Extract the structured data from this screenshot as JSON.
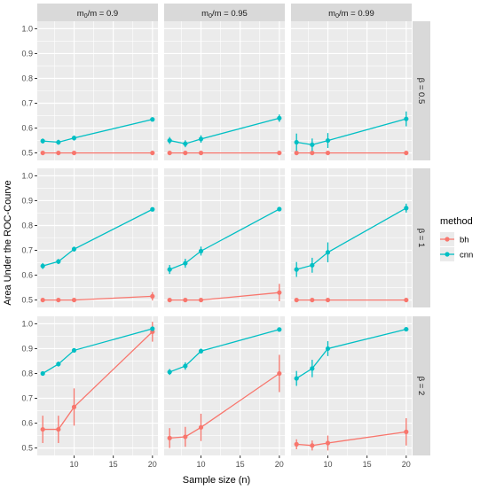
{
  "chart_data": {
    "type": "line",
    "xlabel": "Sample size (n)",
    "ylabel": "Area Under the ROC-Courve",
    "xlim": [
      5.3,
      20.7
    ],
    "ylim": [
      0.47,
      1.03
    ],
    "x_ticks": [
      10,
      15,
      20
    ],
    "y_ticks": [
      0.5,
      0.6,
      0.7,
      0.8,
      0.9,
      1.0
    ],
    "x_tick_labels": [
      "10",
      "15",
      "20"
    ],
    "y_tick_labels": [
      "0.5",
      "0.6",
      "0.7",
      "0.8",
      "0.9",
      "1.0"
    ],
    "columns": [
      {
        "id": "m0_09",
        "label_main": "m",
        "label_sub": "0",
        "label_rest": "/m = 0.9"
      },
      {
        "id": "m0_095",
        "label_main": "m",
        "label_sub": "0",
        "label_rest": "/m = 0.95"
      },
      {
        "id": "m0_099",
        "label_main": "m",
        "label_sub": "0",
        "label_rest": "/m = 0.99"
      }
    ],
    "rows": [
      {
        "id": "beta_05",
        "label": "β = 0.5"
      },
      {
        "id": "beta_1",
        "label": "β = 1"
      },
      {
        "id": "beta_2",
        "label": "β = 2"
      }
    ],
    "legend": {
      "title": "method",
      "placement": "right",
      "entries": [
        {
          "name": "bh",
          "color": "#F8766D"
        },
        {
          "name": "cnn",
          "color": "#00BFC4"
        }
      ]
    },
    "x": [
      6,
      8,
      10,
      20
    ],
    "panels": [
      {
        "row": 0,
        "col": 0,
        "series": [
          {
            "name": "bh",
            "y": [
              0.5,
              0.5,
              0.5,
              0.5
            ],
            "err": [
              0.004,
              0.004,
              0.004,
              0.004
            ]
          },
          {
            "name": "cnn",
            "y": [
              0.548,
              0.543,
              0.56,
              0.635
            ],
            "err": [
              0.01,
              0.01,
              0.01,
              0.007
            ]
          }
        ]
      },
      {
        "row": 0,
        "col": 1,
        "series": [
          {
            "name": "bh",
            "y": [
              0.5,
              0.5,
              0.5,
              0.5
            ],
            "err": [
              0.004,
              0.004,
              0.004,
              0.004
            ]
          },
          {
            "name": "cnn",
            "y": [
              0.55,
              0.537,
              0.556,
              0.64
            ],
            "err": [
              0.014,
              0.014,
              0.015,
              0.015
            ]
          }
        ]
      },
      {
        "row": 0,
        "col": 2,
        "series": [
          {
            "name": "bh",
            "y": [
              0.5,
              0.5,
              0.5,
              0.5
            ],
            "err": [
              0.004,
              0.004,
              0.004,
              0.004
            ]
          },
          {
            "name": "cnn",
            "y": [
              0.543,
              0.533,
              0.55,
              0.637
            ],
            "err": [
              0.035,
              0.025,
              0.03,
              0.03
            ]
          }
        ]
      },
      {
        "row": 1,
        "col": 0,
        "series": [
          {
            "name": "bh",
            "y": [
              0.5,
              0.5,
              0.5,
              0.515
            ],
            "err": [
              0.005,
              0.005,
              0.005,
              0.017
            ]
          },
          {
            "name": "cnn",
            "y": [
              0.637,
              0.655,
              0.705,
              0.865
            ],
            "err": [
              0.012,
              0.01,
              0.01,
              0.006
            ]
          }
        ]
      },
      {
        "row": 1,
        "col": 1,
        "series": [
          {
            "name": "bh",
            "y": [
              0.5,
              0.5,
              0.5,
              0.53
            ],
            "err": [
              0.004,
              0.004,
              0.004,
              0.035
            ]
          },
          {
            "name": "cnn",
            "y": [
              0.623,
              0.648,
              0.697,
              0.866
            ],
            "err": [
              0.018,
              0.018,
              0.018,
              0.008
            ]
          }
        ]
      },
      {
        "row": 1,
        "col": 2,
        "series": [
          {
            "name": "bh",
            "y": [
              0.5,
              0.5,
              0.5,
              0.5
            ],
            "err": [
              0.004,
              0.004,
              0.004,
              0.004
            ]
          },
          {
            "name": "cnn",
            "y": [
              0.623,
              0.64,
              0.692,
              0.87
            ],
            "err": [
              0.03,
              0.03,
              0.04,
              0.018
            ]
          }
        ]
      },
      {
        "row": 2,
        "col": 0,
        "series": [
          {
            "name": "bh",
            "y": [
              0.575,
              0.575,
              0.665,
              0.968
            ],
            "err": [
              0.055,
              0.055,
              0.075,
              0.04
            ]
          },
          {
            "name": "cnn",
            "y": [
              0.8,
              0.838,
              0.893,
              0.98
            ],
            "err": [
              0.008,
              0.01,
              0.008,
              0.007
            ]
          }
        ]
      },
      {
        "row": 2,
        "col": 1,
        "series": [
          {
            "name": "bh",
            "y": [
              0.54,
              0.545,
              0.583,
              0.8
            ],
            "err": [
              0.04,
              0.04,
              0.055,
              0.075
            ]
          },
          {
            "name": "cnn",
            "y": [
              0.806,
              0.83,
              0.89,
              0.977
            ],
            "err": [
              0.012,
              0.015,
              0.01,
              0.005
            ]
          }
        ]
      },
      {
        "row": 2,
        "col": 2,
        "series": [
          {
            "name": "bh",
            "y": [
              0.515,
              0.51,
              0.52,
              0.565
            ],
            "err": [
              0.02,
              0.02,
              0.03,
              0.055
            ]
          },
          {
            "name": "cnn",
            "y": [
              0.78,
              0.82,
              0.9,
              0.978
            ],
            "err": [
              0.03,
              0.035,
              0.03,
              0.007
            ]
          }
        ]
      }
    ]
  }
}
